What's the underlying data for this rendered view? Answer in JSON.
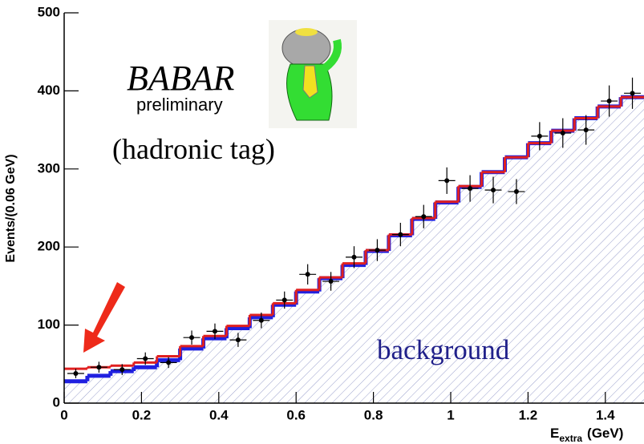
{
  "chart_data": {
    "type": "histogram",
    "y_label": "Events/(0.06 GeV)",
    "x_label": {
      "main": "E",
      "sub": "extra",
      "unit": "(GeV)"
    },
    "logo": {
      "name": "BABAR",
      "note": "preliminary"
    },
    "annotation": "(hadronic tag)",
    "bins": [
      0,
      0.06,
      0.12,
      0.18,
      0.24,
      0.3,
      0.36,
      0.42,
      0.48,
      0.54,
      0.6,
      0.66,
      0.72,
      0.78,
      0.84,
      0.9,
      0.96,
      1.02,
      1.08,
      1.14,
      1.2,
      1.26,
      1.32,
      1.38,
      1.44,
      1.5
    ],
    "series": [
      {
        "name": "background",
        "color": "#2020e0",
        "style": "step-filled",
        "values": [
          28,
          35,
          41,
          46,
          55,
          70,
          83,
          96,
          110,
          126,
          143,
          160,
          177,
          195,
          215,
          236,
          257,
          277,
          296,
          315,
          333,
          349,
          365,
          380,
          392
        ]
      },
      {
        "color": "#e02020",
        "style": "step",
        "values": [
          44,
          46,
          48,
          52,
          60,
          73,
          86,
          99,
          113,
          128,
          145,
          161,
          179,
          196,
          216,
          237,
          258,
          278,
          296,
          315,
          333,
          349,
          365,
          380,
          392
        ]
      },
      {
        "color": "#000000",
        "style": "points",
        "values": [
          38,
          46,
          43,
          57,
          52,
          84,
          92,
          81,
          106,
          132,
          165,
          156,
          187,
          196,
          216,
          239,
          285,
          275,
          273,
          271,
          342,
          346,
          350,
          387,
          397
        ],
        "errors": [
          6,
          7,
          7,
          8,
          7,
          9,
          10,
          9,
          10,
          11,
          13,
          12,
          14,
          14,
          15,
          15,
          17,
          17,
          17,
          16,
          18,
          19,
          19,
          20,
          20
        ]
      }
    ],
    "xlim": [
      0,
      1.5
    ],
    "ylim": [
      0,
      500
    ],
    "xticks": [
      0,
      0.2,
      0.4,
      0.6,
      0.8,
      1,
      1.2,
      1.4
    ],
    "yticks": [
      0,
      100,
      200,
      300,
      400,
      500
    ]
  }
}
